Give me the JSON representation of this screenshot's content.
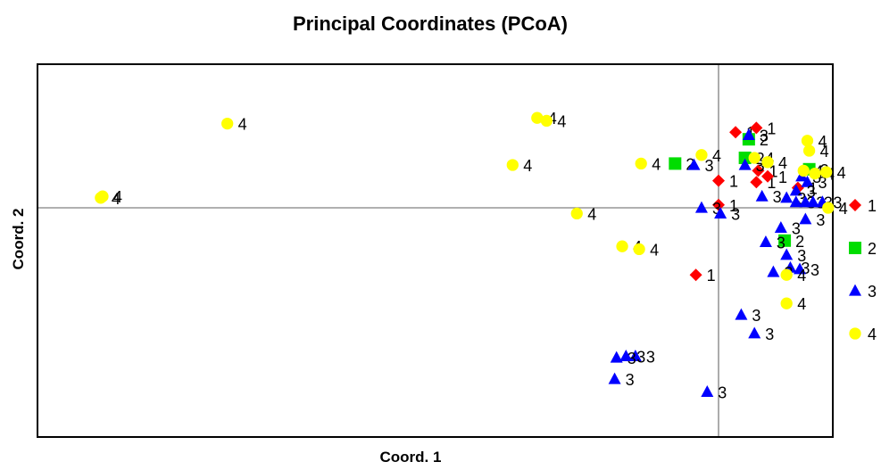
{
  "chart_data": {
    "type": "scatter",
    "title": "Principal Coordinates (PCoA)",
    "xlabel": "Coord. 1",
    "ylabel": "Coord. 2",
    "xlim": [
      -1.8,
      0.3
    ],
    "ylim": [
      -0.8,
      0.5
    ],
    "grid": false,
    "reference_lines": {
      "x": 0,
      "y": 0
    },
    "legend_position": "right",
    "series": [
      {
        "name": "1",
        "color": "#ff0000",
        "marker": "diamond",
        "points": [
          {
            "x": 0.045,
            "y": 0.265,
            "label": "1"
          },
          {
            "x": 0.1,
            "y": 0.28,
            "label": "1"
          },
          {
            "x": 0.105,
            "y": 0.13,
            "label": "1"
          },
          {
            "x": 0.1,
            "y": 0.09,
            "label": "1"
          },
          {
            "x": 0.13,
            "y": 0.11,
            "label": "1"
          },
          {
            "x": 0.0,
            "y": 0.095,
            "label": "1"
          },
          {
            "x": 0.21,
            "y": 0.07,
            "label": "1"
          },
          {
            "x": 0.0,
            "y": 0.01,
            "label": "1"
          },
          {
            "x": -0.06,
            "y": -0.235,
            "label": "1"
          }
        ]
      },
      {
        "name": "2",
        "color": "#00dd00",
        "marker": "square",
        "points": [
          {
            "x": 0.08,
            "y": 0.24,
            "label": "2"
          },
          {
            "x": 0.07,
            "y": 0.175,
            "label": "2"
          },
          {
            "x": -0.115,
            "y": 0.155,
            "label": "2"
          },
          {
            "x": 0.24,
            "y": 0.135,
            "label": "2"
          },
          {
            "x": 0.175,
            "y": -0.115,
            "label": "2"
          }
        ]
      },
      {
        "name": "3",
        "color": "#0000ff",
        "marker": "triangle",
        "points": [
          {
            "x": 0.08,
            "y": 0.255,
            "label": "3"
          },
          {
            "x": 0.07,
            "y": 0.15,
            "label": "3"
          },
          {
            "x": -0.065,
            "y": 0.15,
            "label": "3"
          },
          {
            "x": 0.22,
            "y": 0.11,
            "label": "3"
          },
          {
            "x": 0.235,
            "y": 0.09,
            "label": "3"
          },
          {
            "x": 0.205,
            "y": 0.06,
            "label": "3"
          },
          {
            "x": 0.115,
            "y": 0.04,
            "label": "3"
          },
          {
            "x": 0.18,
            "y": 0.035,
            "label": "3"
          },
          {
            "x": 0.205,
            "y": 0.02,
            "label": "3"
          },
          {
            "x": 0.23,
            "y": 0.02,
            "label": "3"
          },
          {
            "x": 0.25,
            "y": 0.02,
            "label": "3"
          },
          {
            "x": 0.275,
            "y": 0.02,
            "label": "3"
          },
          {
            "x": -0.045,
            "y": 0.0,
            "label": "3"
          },
          {
            "x": 0.005,
            "y": -0.02,
            "label": "3"
          },
          {
            "x": 0.23,
            "y": -0.04,
            "label": "3"
          },
          {
            "x": 0.165,
            "y": -0.07,
            "label": "3"
          },
          {
            "x": 0.125,
            "y": -0.12,
            "label": "3"
          },
          {
            "x": 0.18,
            "y": -0.165,
            "label": "3"
          },
          {
            "x": 0.19,
            "y": -0.21,
            "label": "3"
          },
          {
            "x": 0.145,
            "y": -0.225,
            "label": "3"
          },
          {
            "x": 0.215,
            "y": -0.215,
            "label": "3"
          },
          {
            "x": 0.06,
            "y": -0.375,
            "label": "3"
          },
          {
            "x": 0.095,
            "y": -0.44,
            "label": "3"
          },
          {
            "x": -0.22,
            "y": -0.52,
            "label": "3"
          },
          {
            "x": -0.27,
            "y": -0.525,
            "label": "3"
          },
          {
            "x": -0.245,
            "y": -0.52,
            "label": "3"
          },
          {
            "x": -0.275,
            "y": -0.6,
            "label": "3"
          },
          {
            "x": -0.03,
            "y": -0.645,
            "label": "3"
          }
        ]
      },
      {
        "name": "4",
        "color": "#ffff00",
        "marker": "circle",
        "points": [
          {
            "x": -1.63,
            "y": 0.04,
            "label": "4"
          },
          {
            "x": -1.635,
            "y": 0.035,
            "label": "4"
          },
          {
            "x": -1.3,
            "y": 0.295,
            "label": "4"
          },
          {
            "x": -0.48,
            "y": 0.315,
            "label": "4"
          },
          {
            "x": -0.455,
            "y": 0.305,
            "label": "4"
          },
          {
            "x": -0.545,
            "y": 0.15,
            "label": "4"
          },
          {
            "x": -0.205,
            "y": 0.155,
            "label": "4"
          },
          {
            "x": -0.045,
            "y": 0.185,
            "label": "4"
          },
          {
            "x": -0.375,
            "y": -0.02,
            "label": "4"
          },
          {
            "x": -0.255,
            "y": -0.135,
            "label": "4"
          },
          {
            "x": -0.21,
            "y": -0.145,
            "label": "4"
          },
          {
            "x": 0.095,
            "y": 0.175,
            "label": "4"
          },
          {
            "x": 0.13,
            "y": 0.16,
            "label": "4"
          },
          {
            "x": 0.235,
            "y": 0.235,
            "label": "4"
          },
          {
            "x": 0.24,
            "y": 0.2,
            "label": "4"
          },
          {
            "x": 0.225,
            "y": 0.13,
            "label": "4"
          },
          {
            "x": 0.255,
            "y": 0.12,
            "label": "4"
          },
          {
            "x": 0.285,
            "y": 0.125,
            "label": "4"
          },
          {
            "x": 0.29,
            "y": 0.0,
            "label": "4"
          },
          {
            "x": 0.18,
            "y": -0.235,
            "label": "4"
          },
          {
            "x": 0.18,
            "y": -0.335,
            "label": "4"
          }
        ]
      }
    ]
  }
}
